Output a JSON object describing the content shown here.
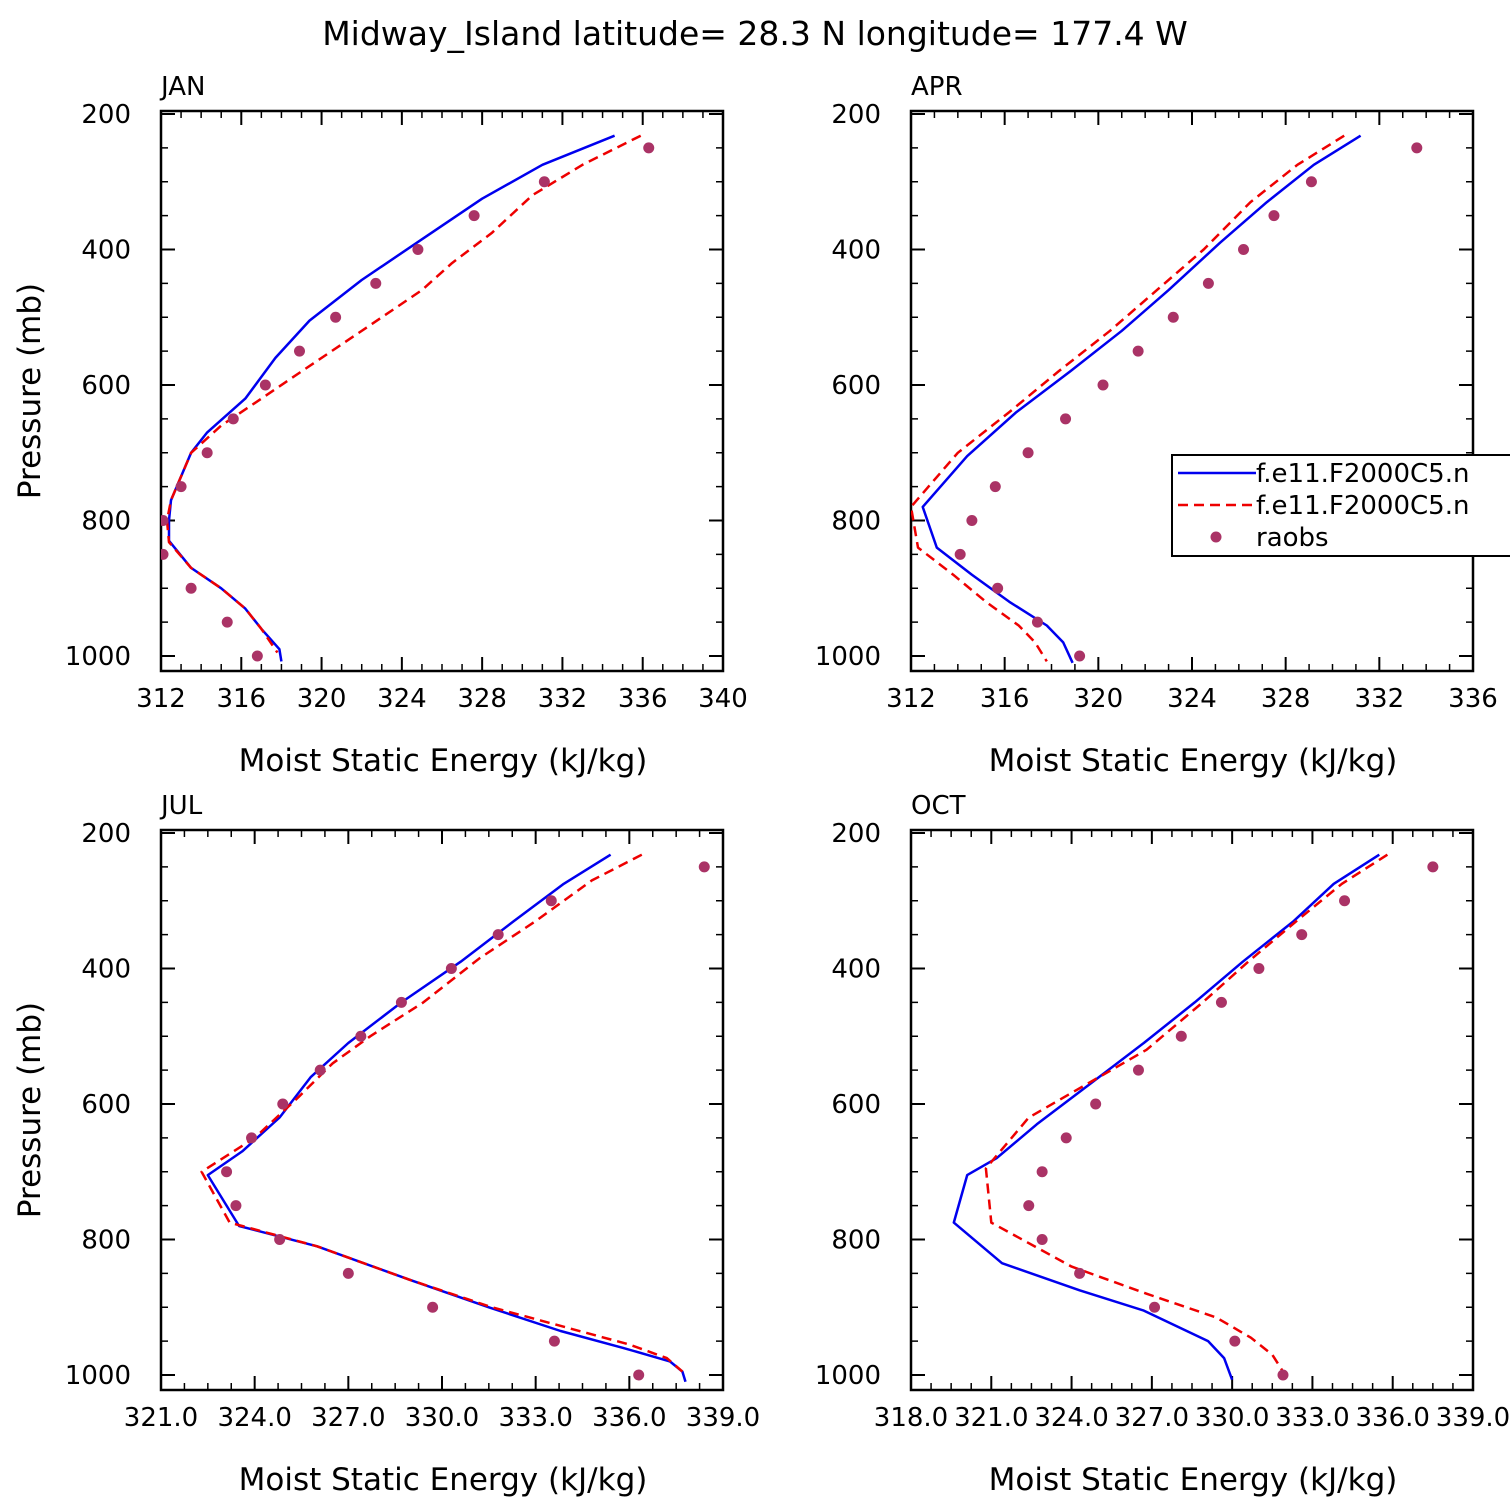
{
  "title": "Midway_Island  latitude= 28.3 N longitude= 177.4 W",
  "colors": {
    "model1": "#0000ee",
    "model2": "#ee0000",
    "raobs": "#aa3366",
    "axis": "#000000"
  },
  "legend": {
    "placement": "right-middle of APR panel",
    "entries": [
      {
        "label": "f.e11.F2000C5.n",
        "style": "solid-line",
        "color": "#0000ee"
      },
      {
        "label": "f.e11.F2000C5.n",
        "style": "dashed-line",
        "color": "#ee0000"
      },
      {
        "label": "raobs",
        "style": "marker",
        "color": "#aa3366"
      }
    ]
  },
  "chart_data": [
    {
      "type": "line",
      "panel": "JAN",
      "xlabel": "Moist Static Energy (kJ/kg)",
      "ylabel": "Pressure (mb)",
      "xlim": [
        312,
        340
      ],
      "ylim": [
        1000,
        200
      ],
      "xticks": [
        312,
        316,
        320,
        324,
        328,
        332,
        336,
        340
      ],
      "xtick_labels": [
        "312",
        "316",
        "320",
        "324",
        "328",
        "332",
        "336",
        "340"
      ],
      "yticks": [
        200,
        400,
        600,
        800,
        1000
      ],
      "ytick_labels": [
        "200",
        "400",
        "600",
        "800",
        "1000"
      ],
      "series": [
        {
          "name": "f.e11.F2000C5.n",
          "style": "solid",
          "points": [
            [
              334.6,
              232
            ],
            [
              331.0,
              275
            ],
            [
              328.0,
              325
            ],
            [
              325.0,
              385
            ],
            [
              322.0,
              445
            ],
            [
              319.4,
              505
            ],
            [
              317.7,
              560
            ],
            [
              316.2,
              620
            ],
            [
              314.3,
              670
            ],
            [
              313.5,
              700
            ],
            [
              312.5,
              770
            ],
            [
              312.4,
              800
            ],
            [
              312.4,
              830
            ],
            [
              313.5,
              870
            ],
            [
              315.0,
              900
            ],
            [
              316.2,
              930
            ],
            [
              317.0,
              960
            ],
            [
              317.9,
              990
            ],
            [
              318.0,
              1008
            ]
          ]
        },
        {
          "name": "f.e11.F2000C5.n",
          "style": "dashed",
          "points": [
            [
              335.9,
              232
            ],
            [
              333.0,
              275
            ],
            [
              330.5,
              320
            ],
            [
              328.5,
              375
            ],
            [
              326.5,
              420
            ],
            [
              325.0,
              460
            ],
            [
              323.0,
              500
            ],
            [
              321.0,
              540
            ],
            [
              319.0,
              580
            ],
            [
              317.0,
              620
            ],
            [
              315.0,
              660
            ],
            [
              313.5,
              700
            ],
            [
              312.5,
              770
            ],
            [
              312.3,
              800
            ],
            [
              312.4,
              832
            ],
            [
              313.5,
              870
            ],
            [
              315.0,
              900
            ],
            [
              316.2,
              930
            ],
            [
              317.0,
              960
            ],
            [
              317.8,
              995
            ]
          ]
        },
        {
          "name": "raobs",
          "style": "markers",
          "points": [
            [
              336.3,
              250
            ],
            [
              331.1,
              300
            ],
            [
              327.6,
              350
            ],
            [
              324.8,
              400
            ],
            [
              322.7,
              450
            ],
            [
              320.7,
              500
            ],
            [
              318.9,
              550
            ],
            [
              317.2,
              600
            ],
            [
              315.6,
              650
            ],
            [
              314.3,
              700
            ],
            [
              313.0,
              750
            ],
            [
              312.1,
              800
            ],
            [
              312.1,
              850
            ],
            [
              313.5,
              900
            ],
            [
              315.3,
              950
            ],
            [
              316.8,
              1000
            ]
          ]
        }
      ]
    },
    {
      "type": "line",
      "panel": "APR",
      "xlabel": "Moist Static Energy (kJ/kg)",
      "ylabel": "",
      "xlim": [
        312,
        336
      ],
      "ylim": [
        1000,
        200
      ],
      "xticks": [
        312,
        316,
        320,
        324,
        328,
        332,
        336
      ],
      "xtick_labels": [
        "312",
        "316",
        "320",
        "324",
        "328",
        "332",
        "336"
      ],
      "yticks": [
        200,
        400,
        600,
        800,
        1000
      ],
      "ytick_labels": [
        "200",
        "400",
        "600",
        "800",
        "1000"
      ],
      "series": [
        {
          "name": "f.e11.F2000C5.n",
          "style": "solid",
          "points": [
            [
              331.2,
              232
            ],
            [
              329.2,
              275
            ],
            [
              327.2,
              330
            ],
            [
              325.2,
              390
            ],
            [
              323.0,
              460
            ],
            [
              321.0,
              520
            ],
            [
              318.8,
              580
            ],
            [
              316.5,
              640
            ],
            [
              314.4,
              705
            ],
            [
              312.5,
              780
            ],
            [
              313.1,
              840
            ],
            [
              314.6,
              880
            ],
            [
              316.2,
              920
            ],
            [
              317.8,
              955
            ],
            [
              318.5,
              980
            ],
            [
              318.9,
              1010
            ]
          ]
        },
        {
          "name": "f.e11.F2000C5.n",
          "style": "dashed",
          "points": [
            [
              330.5,
              232
            ],
            [
              328.5,
              275
            ],
            [
              326.5,
              330
            ],
            [
              324.5,
              400
            ],
            [
              322.5,
              460
            ],
            [
              320.5,
              520
            ],
            [
              318.3,
              580
            ],
            [
              316.2,
              640
            ],
            [
              314.0,
              700
            ],
            [
              312.0,
              780
            ],
            [
              312.3,
              840
            ],
            [
              313.8,
              880
            ],
            [
              315.2,
              920
            ],
            [
              316.6,
              955
            ],
            [
              317.3,
              980
            ],
            [
              317.8,
              1008
            ]
          ]
        },
        {
          "name": "raobs",
          "style": "markers",
          "points": [
            [
              333.6,
              250
            ],
            [
              329.1,
              300
            ],
            [
              327.5,
              350
            ],
            [
              326.2,
              400
            ],
            [
              324.7,
              450
            ],
            [
              323.2,
              500
            ],
            [
              321.7,
              550
            ],
            [
              320.2,
              600
            ],
            [
              318.6,
              650
            ],
            [
              317.0,
              700
            ],
            [
              315.6,
              750
            ],
            [
              314.6,
              800
            ],
            [
              314.1,
              850
            ],
            [
              315.7,
              900
            ],
            [
              317.4,
              950
            ],
            [
              319.2,
              1000
            ]
          ]
        }
      ]
    },
    {
      "type": "line",
      "panel": "JUL",
      "xlabel": "Moist Static Energy (kJ/kg)",
      "ylabel": "Pressure (mb)",
      "xlim": [
        321,
        339
      ],
      "ylim": [
        1000,
        200
      ],
      "xticks": [
        321,
        324,
        327,
        330,
        333,
        336,
        339
      ],
      "xtick_labels": [
        "321.0",
        "324.0",
        "327.0",
        "330.0",
        "333.0",
        "336.0",
        "339.0"
      ],
      "yticks": [
        200,
        400,
        600,
        800,
        1000
      ],
      "ytick_labels": [
        "200",
        "400",
        "600",
        "800",
        "1000"
      ],
      "series": [
        {
          "name": "f.e11.F2000C5.n",
          "style": "solid",
          "points": [
            [
              335.4,
              232
            ],
            [
              333.9,
              275
            ],
            [
              332.3,
              330
            ],
            [
              330.6,
              390
            ],
            [
              328.7,
              450
            ],
            [
              327.0,
              510
            ],
            [
              325.8,
              560
            ],
            [
              324.8,
              620
            ],
            [
              323.6,
              670
            ],
            [
              322.5,
              705
            ],
            [
              323.5,
              780
            ],
            [
              326.0,
              810
            ],
            [
              329.0,
              860
            ],
            [
              331.5,
              900
            ],
            [
              333.8,
              935
            ],
            [
              335.8,
              960
            ],
            [
              337.3,
              980
            ],
            [
              337.7,
              995
            ],
            [
              337.8,
              1010
            ]
          ]
        },
        {
          "name": "f.e11.F2000C5.n",
          "style": "dashed",
          "points": [
            [
              336.4,
              232
            ],
            [
              334.8,
              270
            ],
            [
              333.0,
              330
            ],
            [
              331.2,
              385
            ],
            [
              329.4,
              450
            ],
            [
              327.7,
              500
            ],
            [
              326.5,
              540
            ],
            [
              325.4,
              590
            ],
            [
              324.0,
              650
            ],
            [
              322.3,
              700
            ],
            [
              323.2,
              775
            ],
            [
              326.0,
              810
            ],
            [
              329.0,
              860
            ],
            [
              331.6,
              900
            ],
            [
              334.0,
              930
            ],
            [
              336.0,
              955
            ],
            [
              337.2,
              975
            ],
            [
              337.7,
              995
            ]
          ]
        },
        {
          "name": "raobs",
          "style": "markers",
          "points": [
            [
              338.4,
              250
            ],
            [
              333.5,
              300
            ],
            [
              331.8,
              350
            ],
            [
              330.3,
              400
            ],
            [
              328.7,
              450
            ],
            [
              327.4,
              500
            ],
            [
              326.1,
              550
            ],
            [
              324.9,
              600
            ],
            [
              323.9,
              650
            ],
            [
              323.1,
              700
            ],
            [
              323.4,
              750
            ],
            [
              324.8,
              800
            ],
            [
              327.0,
              850
            ],
            [
              329.7,
              900
            ],
            [
              333.6,
              950
            ],
            [
              336.3,
              1000
            ]
          ]
        }
      ]
    },
    {
      "type": "line",
      "panel": "OCT",
      "xlabel": "Moist Static Energy (kJ/kg)",
      "ylabel": "",
      "xlim": [
        318,
        339
      ],
      "ylim": [
        1000,
        200
      ],
      "xticks": [
        318,
        321,
        324,
        327,
        330,
        333,
        336,
        339
      ],
      "xtick_labels": [
        "318.0",
        "321.0",
        "324.0",
        "327.0",
        "330.0",
        "333.0",
        "336.0",
        "339.0"
      ],
      "yticks": [
        200,
        400,
        600,
        800,
        1000
      ],
      "ytick_labels": [
        "200",
        "400",
        "600",
        "800",
        "1000"
      ],
      "series": [
        {
          "name": "f.e11.F2000C5.n",
          "style": "solid",
          "points": [
            [
              335.5,
              232
            ],
            [
              333.8,
              275
            ],
            [
              332.3,
              330
            ],
            [
              330.4,
              390
            ],
            [
              328.6,
              450
            ],
            [
              326.7,
              510
            ],
            [
              324.7,
              570
            ],
            [
              322.7,
              630
            ],
            [
              321.2,
              680
            ],
            [
              320.1,
              705
            ],
            [
              319.6,
              775
            ],
            [
              321.4,
              835
            ],
            [
              324.3,
              875
            ],
            [
              326.7,
              905
            ],
            [
              329.1,
              950
            ],
            [
              329.7,
              975
            ],
            [
              330.0,
              1007
            ]
          ]
        },
        {
          "name": "f.e11.F2000C5.n",
          "style": "dashed",
          "points": [
            [
              335.8,
              232
            ],
            [
              334.1,
              275
            ],
            [
              332.4,
              330
            ],
            [
              330.6,
              390
            ],
            [
              328.9,
              450
            ],
            [
              326.8,
              520
            ],
            [
              324.6,
              570
            ],
            [
              322.4,
              620
            ],
            [
              320.8,
              695
            ],
            [
              321.0,
              775
            ],
            [
              324.0,
              840
            ],
            [
              326.8,
              880
            ],
            [
              329.4,
              915
            ],
            [
              330.7,
              945
            ],
            [
              331.5,
              970
            ],
            [
              331.9,
              995
            ]
          ]
        },
        {
          "name": "raobs",
          "style": "markers",
          "points": [
            [
              337.5,
              250
            ],
            [
              334.2,
              300
            ],
            [
              332.6,
              350
            ],
            [
              331.0,
              400
            ],
            [
              329.6,
              450
            ],
            [
              328.1,
              500
            ],
            [
              326.5,
              550
            ],
            [
              324.9,
              600
            ],
            [
              323.8,
              650
            ],
            [
              322.9,
              700
            ],
            [
              322.4,
              750
            ],
            [
              322.9,
              800
            ],
            [
              324.3,
              850
            ],
            [
              327.1,
              900
            ],
            [
              330.1,
              950
            ],
            [
              331.9,
              1000
            ]
          ]
        }
      ]
    }
  ]
}
